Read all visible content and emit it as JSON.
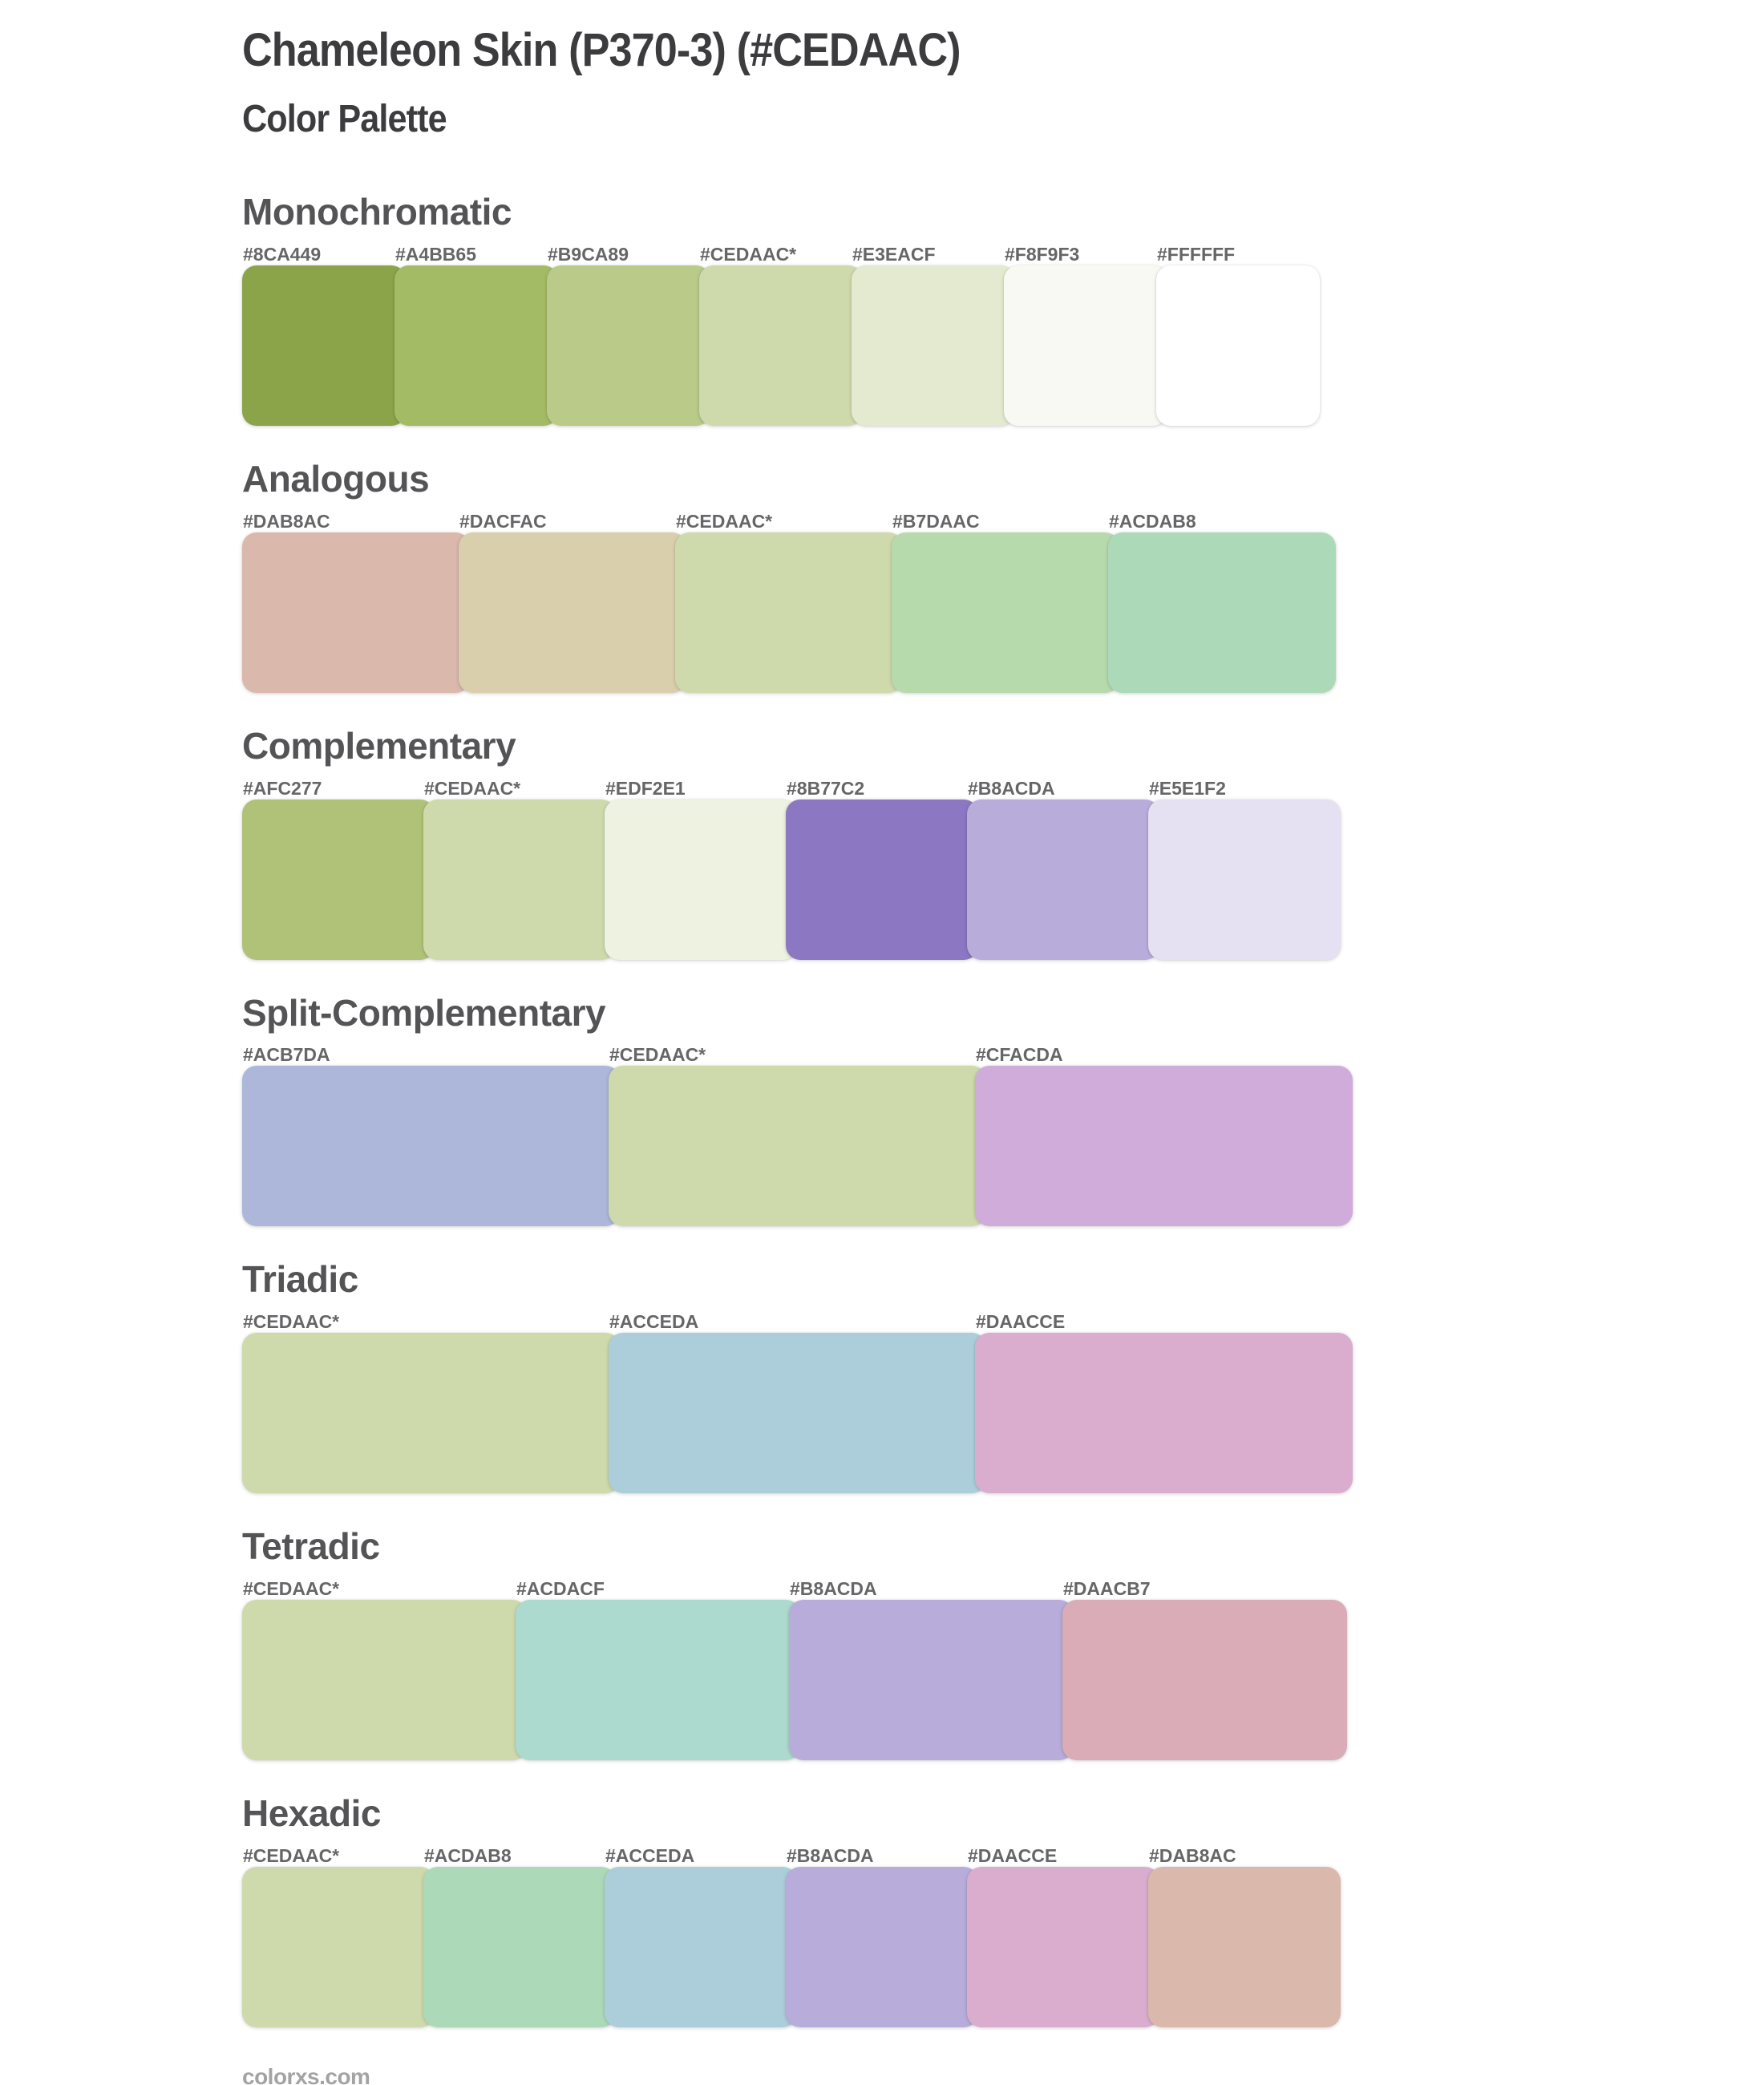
{
  "page": {
    "title": "Chameleon Skin (P370-3) (#CEDAAC)",
    "subtitle": "Color Palette",
    "footer": "colorxs.com"
  },
  "theme": {
    "title-color": "#3c3c3e",
    "heading-color": "#545456",
    "label-color": "#666668",
    "footer-color": "#a3a3a3",
    "background": "#ffffff"
  },
  "sections": [
    {
      "name": "Monochromatic",
      "swatches": [
        {
          "label": "#8CA449",
          "color": "#8CA449"
        },
        {
          "label": "#A4BB65",
          "color": "#A4BB65"
        },
        {
          "label": "#B9CA89",
          "color": "#B9CA89"
        },
        {
          "label": "#CEDAAC*",
          "color": "#CEDAAC"
        },
        {
          "label": "#E3EACF",
          "color": "#E3EACF"
        },
        {
          "label": "#F8F9F3",
          "color": "#F8F9F3"
        },
        {
          "label": "#FFFFFF",
          "color": "#FFFFFF"
        }
      ]
    },
    {
      "name": "Analogous",
      "swatches": [
        {
          "label": "#DAB8AC",
          "color": "#DAB8AC"
        },
        {
          "label": "#DACFAC",
          "color": "#DACFAC"
        },
        {
          "label": "#CEDAAC*",
          "color": "#CEDAAC"
        },
        {
          "label": "#B7DAAC",
          "color": "#B7DAAC"
        },
        {
          "label": "#ACDAB8",
          "color": "#ACDAB8"
        }
      ]
    },
    {
      "name": "Complementary",
      "swatches": [
        {
          "label": "#AFC277",
          "color": "#AFC277"
        },
        {
          "label": "#CEDAAC*",
          "color": "#CEDAAC"
        },
        {
          "label": "#EDF2E1",
          "color": "#EDF2E1"
        },
        {
          "label": "#8B77C2",
          "color": "#8B77C2"
        },
        {
          "label": "#B8ACDA",
          "color": "#B8ACDA"
        },
        {
          "label": "#E5E1F2",
          "color": "#E5E1F2"
        }
      ]
    },
    {
      "name": "Split-Complementary",
      "swatches": [
        {
          "label": "#ACB7DA",
          "color": "#ACB7DA"
        },
        {
          "label": "#CEDAAC*",
          "color": "#CEDAAC"
        },
        {
          "label": "#CFACDA",
          "color": "#CFACDA"
        }
      ]
    },
    {
      "name": "Triadic",
      "swatches": [
        {
          "label": "#CEDAAC*",
          "color": "#CEDAAC"
        },
        {
          "label": "#ACCEDA",
          "color": "#ACCEDA"
        },
        {
          "label": "#DAACCE",
          "color": "#DAACCE"
        }
      ]
    },
    {
      "name": "Tetradic",
      "swatches": [
        {
          "label": "#CEDAAC*",
          "color": "#CEDAAC"
        },
        {
          "label": "#ACDACF",
          "color": "#ACDACF"
        },
        {
          "label": "#B8ACDA",
          "color": "#B8ACDA"
        },
        {
          "label": "#DAACB7",
          "color": "#DAACB7"
        }
      ]
    },
    {
      "name": "Hexadic",
      "swatches": [
        {
          "label": "#CEDAAC*",
          "color": "#CEDAAC"
        },
        {
          "label": "#ACDAB8",
          "color": "#ACDAB8"
        },
        {
          "label": "#ACCEDA",
          "color": "#ACCEDA"
        },
        {
          "label": "#B8ACDA",
          "color": "#B8ACDA"
        },
        {
          "label": "#DAACCE",
          "color": "#DAACCE"
        },
        {
          "label": "#DAB8AC",
          "color": "#DAB8AC"
        }
      ]
    }
  ]
}
